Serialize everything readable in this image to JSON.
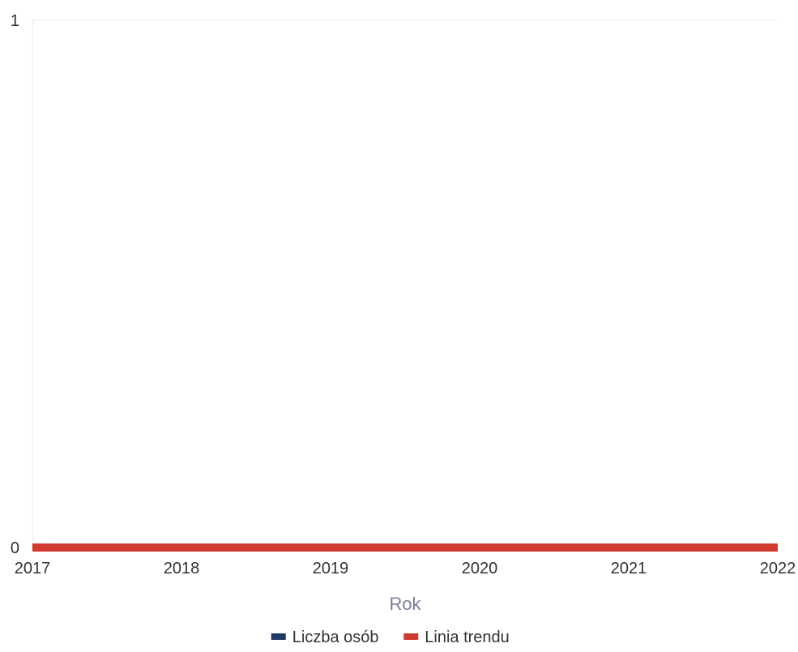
{
  "chart_data": {
    "type": "line",
    "xlabel": "Rok",
    "ylabel": "",
    "x": [
      "2017",
      "2018",
      "2019",
      "2020",
      "2021",
      "2022"
    ],
    "y_ticks": [
      "0",
      "1"
    ],
    "ylim": [
      0,
      1
    ],
    "grid": true,
    "legend_position": "bottom",
    "series": [
      {
        "name": "Liczba osób",
        "color": "#1f3864",
        "values": [
          0,
          0,
          0,
          0,
          0,
          0
        ]
      },
      {
        "name": "Linia trendu",
        "color": "#d13a2e",
        "values": [
          0,
          0,
          0,
          0,
          0,
          0
        ]
      }
    ]
  }
}
